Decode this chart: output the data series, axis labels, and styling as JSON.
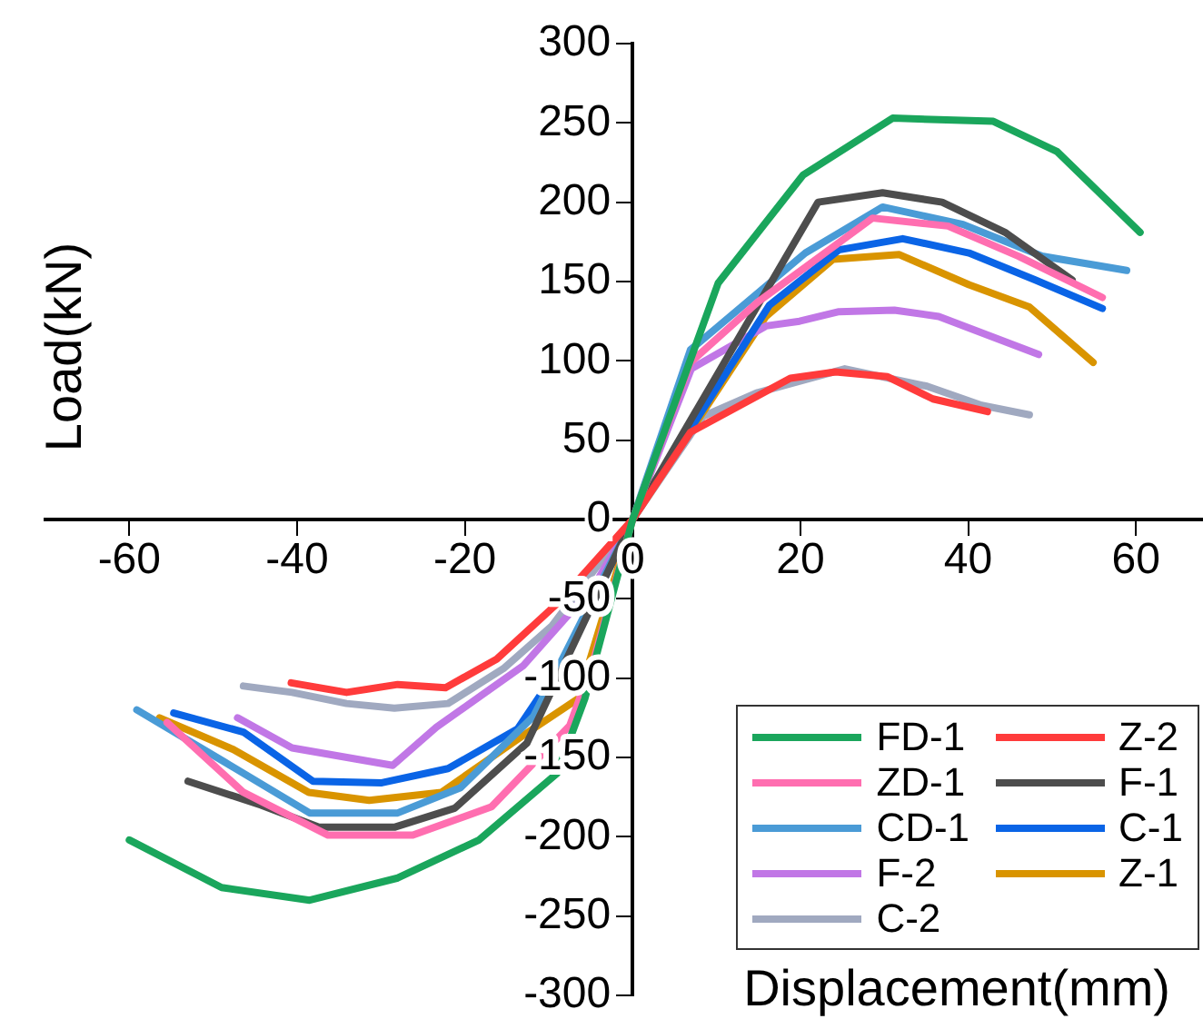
{
  "chart_data": {
    "type": "line",
    "xlabel": "Displacement(mm)",
    "ylabel": "Load(kN)",
    "xlim": [
      -70,
      68
    ],
    "xticks": [
      -60,
      -40,
      -20,
      0,
      20,
      40,
      60
    ],
    "ylim": [
      -300,
      300
    ],
    "yticks": [
      -300,
      -250,
      -200,
      -150,
      -100,
      -50,
      0,
      50,
      100,
      150,
      200,
      250,
      300
    ],
    "grid": false,
    "legend": "bottom right",
    "marker": "none",
    "line_style": "solid",
    "series": [
      {
        "name": "FD-1",
        "color": "#1aa65c",
        "x": [
          -60,
          -49,
          -38.5,
          -28,
          -18.3,
          -9,
          -5.7,
          0,
          10.2,
          20.3,
          31,
          43,
          50.6,
          60.5
        ],
        "values": [
          -202,
          -232,
          -240,
          -226,
          -202,
          -160,
          -113,
          0,
          149,
          217,
          253,
          251,
          232,
          181
        ]
      },
      {
        "name": "Z-2",
        "color": "#ff3b3b",
        "x": [
          -40.7,
          -34.1,
          -28,
          -22.3,
          -16.2,
          -9,
          0,
          6.9,
          18.8,
          24.2,
          30.4,
          35.8,
          42.3
        ],
        "values": [
          -103,
          -109,
          -104,
          -106,
          -88,
          -53,
          0,
          55,
          89,
          93,
          90,
          76,
          68
        ]
      },
      {
        "name": "ZD-1",
        "color": "#ff6eb0",
        "x": [
          -55.5,
          -46.4,
          -36.3,
          -26.2,
          -16.8,
          -7.5,
          -4.6,
          0,
          6.9,
          14.9,
          28.6,
          37.6,
          46,
          56
        ],
        "values": [
          -128,
          -172,
          -199,
          -199,
          -181,
          -130,
          -88,
          0,
          99,
          137,
          190,
          185,
          166,
          140
        ]
      },
      {
        "name": "F-1",
        "color": "#4d4d4d",
        "x": [
          -53,
          -44.3,
          -37.4,
          -28.4,
          -21.2,
          -12.6,
          0,
          22.1,
          29.8,
          36.9,
          44.4,
          52.4
        ],
        "values": [
          -165,
          -180,
          -194,
          -194,
          -182,
          -141,
          0,
          200,
          206,
          200,
          181,
          151
        ]
      },
      {
        "name": "CD-1",
        "color": "#4a9bd6",
        "x": [
          -59.1,
          -48.6,
          -38.5,
          -28,
          -20.5,
          -11.8,
          0,
          6.9,
          20.6,
          29.8,
          39.4,
          48.8,
          58.9
        ],
        "values": [
          -120,
          -153,
          -185,
          -185,
          -169,
          -124,
          0,
          107,
          168,
          197,
          186,
          166,
          157
        ]
      },
      {
        "name": "C-1",
        "color": "#0a64e6",
        "x": [
          -54.7,
          -46.4,
          -38.1,
          -29.9,
          -22,
          -13.7,
          -7.6,
          0,
          16.3,
          24.6,
          32.2,
          40.1,
          48,
          56
        ],
        "values": [
          -122,
          -134,
          -165,
          -166,
          -157,
          -132,
          -84,
          0,
          135,
          170,
          177,
          168,
          151,
          133
        ]
      },
      {
        "name": "F-2",
        "color": "#c177e6",
        "x": [
          -47.1,
          -40.6,
          -28.6,
          -23.4,
          -13,
          -4.6,
          0,
          7,
          15.9,
          19.9,
          24.6,
          31.2,
          36.5,
          48.4
        ],
        "values": [
          -125,
          -144,
          -155,
          -131,
          -92,
          -42,
          0,
          95,
          122,
          125,
          131,
          132,
          128,
          104
        ]
      },
      {
        "name": "Z-1",
        "color": "#d99400",
        "x": [
          -56.4,
          -47.6,
          -38.6,
          -31.4,
          -22.8,
          -13,
          -6.5,
          0,
          15.9,
          23.9,
          31.8,
          40.1,
          47.3,
          54.9
        ],
        "values": [
          -125,
          -145,
          -172,
          -177,
          -172,
          -136,
          -113,
          0,
          128,
          164,
          167,
          148,
          134,
          99
        ]
      },
      {
        "name": "C-2",
        "color": "#a0a9c0",
        "x": [
          -46.4,
          -40.6,
          -34.1,
          -28.4,
          -22,
          -15.4,
          -9.6,
          0,
          8.4,
          14.9,
          25.3,
          35.1,
          41.6,
          47.3
        ],
        "values": [
          -105,
          -109,
          -116,
          -119,
          -116,
          -94,
          -67,
          0,
          65,
          80,
          95,
          84,
          72,
          66
        ]
      }
    ]
  }
}
